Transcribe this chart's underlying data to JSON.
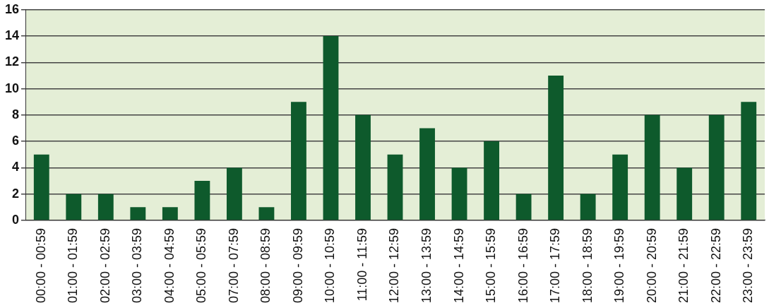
{
  "chart_data": {
    "type": "bar",
    "categories": [
      "00:00 - 00:59",
      "01:00 - 01:59",
      "02:00 - 02:59",
      "03:00 - 03:59",
      "04:00 - 04:59",
      "05:00 - 05:59",
      "07:00 - 07:59",
      "08:00 - 08:59",
      "09:00 - 09:59",
      "10:00 - 10:59",
      "11:00 - 11:59",
      "12:00 - 12:59",
      "13:00 - 13:59",
      "14:00 - 14:59",
      "15:00 - 15:59",
      "16:00 - 16:59",
      "17:00 - 17:59",
      "18:00 - 18:59",
      "19:00 - 19:59",
      "20:00 - 20:59",
      "21:00 - 21:59",
      "22:00 - 22:59",
      "23:00 - 23:59"
    ],
    "values": [
      5,
      2,
      2,
      1,
      1,
      3,
      4,
      1,
      9,
      14,
      8,
      5,
      7,
      4,
      6,
      2,
      11,
      2,
      5,
      8,
      4,
      8,
      9
    ],
    "color": "#0e5a2c",
    "ylim": [
      0,
      16
    ],
    "yticks": [
      0,
      2,
      4,
      6,
      8,
      10,
      12,
      14,
      16
    ],
    "grid": "y",
    "legend": false
  }
}
